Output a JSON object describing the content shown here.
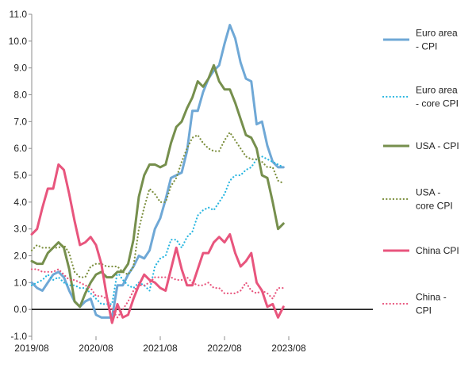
{
  "chart_data": {
    "type": "line",
    "title": "",
    "xlabel": "",
    "ylabel": "",
    "ylim": [
      -1.0,
      11.0
    ],
    "ytick_step": 1.0,
    "x_start": "2019/08",
    "x_tick_labels": [
      "2019/08",
      "2020/08",
      "2021/08",
      "2022/08",
      "2023/08"
    ],
    "zero_line": true,
    "grid": false,
    "legend_position": "right",
    "series": [
      {
        "name": "Euro area - CPI",
        "legend_lines": [
          "Euro area",
          "- CPI"
        ],
        "color": "#6fa8d6",
        "style": "solid",
        "values": [
          1.0,
          0.8,
          0.7,
          1.0,
          1.3,
          1.4,
          1.2,
          0.7,
          0.3,
          0.1,
          0.3,
          0.4,
          -0.2,
          -0.3,
          -0.3,
          -0.3,
          0.9,
          0.9,
          1.3,
          1.6,
          2.0,
          1.9,
          2.2,
          3.0,
          3.4,
          4.1,
          4.9,
          5.0,
          5.1,
          5.9,
          7.4,
          7.4,
          8.1,
          8.6,
          8.9,
          9.1,
          9.9,
          10.6,
          10.1,
          9.2,
          8.6,
          8.5,
          6.9,
          7.0,
          6.1,
          5.5,
          5.3,
          5.3
        ]
      },
      {
        "name": "Euro area - core CPI",
        "legend_lines": [
          "Euro area",
          "- core CPI"
        ],
        "color": "#26b5e0",
        "style": "dotted",
        "values": [
          0.9,
          1.0,
          1.1,
          1.3,
          1.1,
          1.2,
          1.0,
          0.9,
          0.9,
          0.8,
          0.8,
          0.6,
          0.4,
          0.2,
          0.2,
          0.2,
          1.4,
          1.1,
          0.9,
          0.8,
          1.0,
          0.9,
          0.7,
          1.6,
          1.9,
          2.0,
          2.6,
          2.6,
          2.3,
          2.7,
          2.9,
          3.5,
          3.7,
          3.8,
          3.7,
          4.0,
          4.3,
          4.8,
          5.0,
          5.0,
          5.2,
          5.3,
          5.6,
          5.7,
          5.6,
          5.5,
          5.4,
          5.3
        ]
      },
      {
        "name": "USA - CPI",
        "legend_lines": [
          "USA - CPI"
        ],
        "color": "#768f4d",
        "style": "solid",
        "values": [
          1.8,
          1.7,
          1.7,
          2.1,
          2.3,
          2.5,
          2.3,
          1.5,
          0.3,
          0.1,
          0.6,
          1.0,
          1.3,
          1.4,
          1.2,
          1.2,
          1.4,
          1.4,
          1.7,
          2.6,
          4.2,
          5.0,
          5.4,
          5.4,
          5.3,
          5.4,
          6.2,
          6.8,
          7.0,
          7.5,
          7.9,
          8.5,
          8.3,
          8.6,
          9.1,
          8.5,
          8.2,
          8.2,
          7.7,
          7.1,
          6.5,
          6.4,
          6.0,
          5.0,
          4.9,
          4.0,
          3.0,
          3.2
        ]
      },
      {
        "name": "USA - core CPI",
        "legend_lines": [
          "USA -",
          "core CPI"
        ],
        "color": "#7c8f3e",
        "style": "dotted",
        "values": [
          2.2,
          2.4,
          2.3,
          2.3,
          2.3,
          2.3,
          2.4,
          2.1,
          1.4,
          1.2,
          1.2,
          1.6,
          1.7,
          1.7,
          1.6,
          1.6,
          1.6,
          1.4,
          1.3,
          1.6,
          3.0,
          3.8,
          4.5,
          4.3,
          4.0,
          4.0,
          4.6,
          4.9,
          5.5,
          6.0,
          6.4,
          6.5,
          6.2,
          6.0,
          5.9,
          5.9,
          6.3,
          6.6,
          6.3,
          6.0,
          5.7,
          5.6,
          5.6,
          5.5,
          5.3,
          5.3,
          4.8,
          4.7
        ]
      },
      {
        "name": "China CPI",
        "legend_lines": [
          "China CPI"
        ],
        "color": "#e8557d",
        "style": "solid",
        "values": [
          2.8,
          3.0,
          3.8,
          4.5,
          4.5,
          5.4,
          5.2,
          4.3,
          3.3,
          2.4,
          2.5,
          2.7,
          2.4,
          1.7,
          0.5,
          -0.5,
          0.2,
          -0.3,
          -0.2,
          0.4,
          0.9,
          1.3,
          1.1,
          1.0,
          0.8,
          0.7,
          1.5,
          2.3,
          1.5,
          0.9,
          0.9,
          1.5,
          2.1,
          2.1,
          2.5,
          2.7,
          2.5,
          2.8,
          2.1,
          1.6,
          1.8,
          2.1,
          1.0,
          0.7,
          0.1,
          0.2,
          -0.3,
          0.1
        ]
      },
      {
        "name": "China - CPI",
        "legend_lines": [
          "China -",
          "CPI"
        ],
        "color": "#e8557d",
        "style": "dotted",
        "values": [
          1.5,
          1.5,
          1.4,
          1.4,
          1.4,
          1.5,
          1.3,
          1.1,
          1.1,
          1.0,
          0.9,
          0.8,
          0.5,
          0.5,
          0.4,
          0.0,
          -0.3,
          0.0,
          0.3,
          0.7,
          0.9,
          0.9,
          1.0,
          1.2,
          1.2,
          1.2,
          1.2,
          1.1,
          1.1,
          1.2,
          1.0,
          0.9,
          0.9,
          1.0,
          0.8,
          0.8,
          0.6,
          0.6,
          0.6,
          0.7,
          1.0,
          0.7,
          0.6,
          0.7,
          0.6,
          0.4,
          0.8,
          0.8
        ]
      }
    ]
  }
}
